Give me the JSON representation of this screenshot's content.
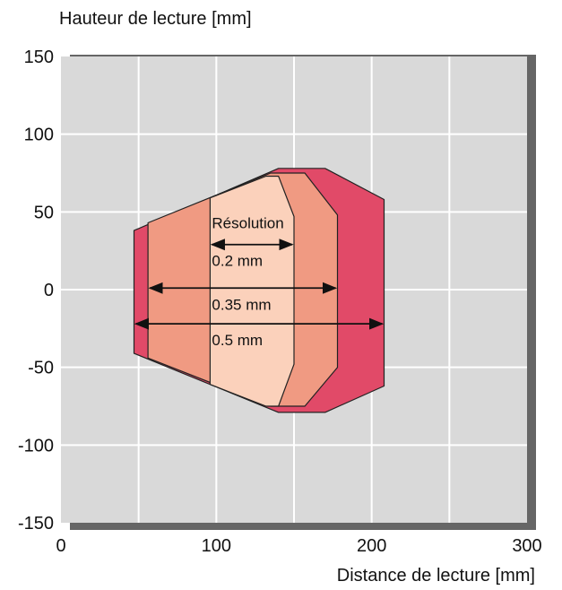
{
  "chart_data": {
    "type": "area",
    "ylabel": "Hauteur de lecture [mm]",
    "xlabel": "Distance de lecture [mm]",
    "xlim": [
      0,
      300
    ],
    "ylim": [
      -150,
      150
    ],
    "xticks": [
      0,
      100,
      200,
      300
    ],
    "yticks": [
      150,
      100,
      50,
      0,
      -50,
      -100,
      -150
    ],
    "grid": true,
    "zones": [
      {
        "name": "0.5 mm",
        "color": "#e14a68",
        "points": [
          [
            47,
            38
          ],
          [
            47,
            -41
          ],
          [
            140,
            -79
          ],
          [
            170,
            -79
          ],
          [
            208,
            -62
          ],
          [
            208,
            58
          ],
          [
            170,
            78
          ],
          [
            140,
            78
          ]
        ]
      },
      {
        "name": "0.35 mm",
        "color": "#f09a82",
        "points": [
          [
            56,
            43
          ],
          [
            56,
            -44
          ],
          [
            135,
            -75
          ],
          [
            157,
            -75
          ],
          [
            178,
            -50
          ],
          [
            178,
            48
          ],
          [
            157,
            75
          ],
          [
            135,
            75
          ]
        ]
      },
      {
        "name": "0.2 mm",
        "color": "#fbd1bb",
        "points": [
          [
            96,
            59
          ],
          [
            96,
            -61
          ],
          [
            132,
            -75
          ],
          [
            140,
            -75
          ],
          [
            150,
            -48
          ],
          [
            150,
            47
          ],
          [
            140,
            73
          ],
          [
            132,
            73
          ]
        ]
      }
    ],
    "annotations": {
      "heading": "Résolution",
      "items": [
        {
          "label": "0.2 mm",
          "x_from": 96,
          "x_to": 150,
          "y": 29
        },
        {
          "label": "0.35 mm",
          "x_from": 56,
          "x_to": 178,
          "y": 1
        },
        {
          "label": "0.5 mm",
          "x_from": 47,
          "x_to": 208,
          "y": -22
        }
      ]
    },
    "colors": {
      "plot_background": "#d9d9d9",
      "grid": "#ffffff",
      "frame_shadow": "#666666",
      "outline": "#222222"
    }
  }
}
